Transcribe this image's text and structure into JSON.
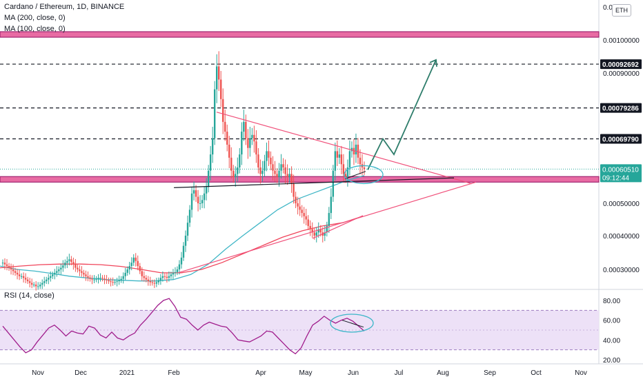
{
  "legend": {
    "title": "Cardano / Ethereum, 1D, BINANCE",
    "ma200": "MA (200, close, 0)",
    "ma100": "MA (100, close, 0)",
    "rsi": "RSI (14, close)"
  },
  "unit_badge": "ETH",
  "colors": {
    "up": "#26a69a",
    "down": "#ef5350",
    "ma200": "#f0445a",
    "ma100": "#3fb6c6",
    "zone_fill": "#e86ba3",
    "zone_border": "#a02470",
    "triangle": "#f0507a",
    "arrow": "#2e7d6b",
    "rsi_line": "#a01c8c",
    "rsi_band": "#ede1f7",
    "ellipse": "#3bb6c8",
    "neckline": "#131722",
    "text_line": "#131722"
  },
  "price_scale": {
    "top_label": "0.0",
    "ticks": [
      "0.00100000",
      "0.00090000",
      "0.00050000",
      "0.00040000",
      "0.00030000"
    ]
  },
  "level_labels": [
    {
      "text": "0.00092692",
      "value": 0.00092692
    },
    {
      "text": "0.00079286",
      "value": 0.00079286
    },
    {
      "text": "0.00069790",
      "value": 0.0006979
    }
  ],
  "current_price": {
    "text": "0.00060510",
    "value": 0.0006051,
    "countdown": "09:12:44"
  },
  "rsi_scale": {
    "ticks": [
      "80.00",
      "60.00",
      "40.00",
      "20.00"
    ]
  },
  "x_axis_labels": [
    "Nov",
    "Dec",
    "2021",
    "Feb",
    "Apr",
    "May",
    "Jun",
    "Jul",
    "Aug",
    "Sep",
    "Oct",
    "Nov"
  ],
  "chart_data": {
    "type": "candlestick",
    "title": "Cardano / Ethereum, 1D, BINANCE",
    "unit": "ETH",
    "price_range": [
      0.00025,
      0.00105
    ],
    "rsi_range": [
      20,
      80
    ],
    "rsi_band": [
      30,
      70
    ],
    "horizontal_levels": [
      0.00092692,
      0.00079286,
      0.0006979
    ],
    "supply_zone": [
      0.00101,
      0.001025
    ],
    "demand_zone": [
      0.000565,
      0.000582
    ],
    "closes": [
      0.00032,
      0.000315,
      0.00031,
      0.000305,
      0.0003,
      0.000295,
      0.00029,
      0.000285,
      0.00028,
      0.00028,
      0.000275,
      0.00027,
      0.000265,
      0.00026,
      0.000255,
      0.000255,
      0.00025,
      0.00025,
      0.000255,
      0.00026,
      0.000265,
      0.00027,
      0.000275,
      0.00028,
      0.000285,
      0.00029,
      0.000295,
      0.0003,
      0.000305,
      0.000312,
      0.00032,
      0.000325,
      0.00033,
      0.000322,
      0.000315,
      0.000305,
      0.0003,
      0.000295,
      0.00029,
      0.000285,
      0.00028,
      0.000276,
      0.000272,
      0.00027,
      0.00027,
      0.000272,
      0.000275,
      0.000275,
      0.000273,
      0.00027,
      0.000268,
      0.000265,
      0.000263,
      0.000262,
      0.000263,
      0.000265,
      0.000268,
      0.000272,
      0.00028,
      0.00029,
      0.0003,
      0.00031,
      0.00032,
      0.000335,
      0.000325,
      0.00031,
      0.000295,
      0.00028,
      0.000275,
      0.00027,
      0.000265,
      0.000262,
      0.00026,
      0.000258,
      0.000262,
      0.000268,
      0.000275,
      0.00028,
      0.000278,
      0.000275,
      0.00028,
      0.000285,
      0.00029,
      0.000292,
      0.0003,
      0.000315,
      0.000335,
      0.00037,
      0.0004,
      0.00044,
      0.00048,
      0.00053,
      0.00054,
      0.00052,
      0.0005,
      0.0005,
      0.00051,
      0.00053,
      0.00055,
      0.0006,
      0.00065,
      0.0007,
      0.00085,
      0.00092,
      0.00088,
      0.00082,
      0.00075,
      0.00072,
      0.00068,
      0.00064,
      0.0006,
      0.00058,
      0.00059,
      0.00061,
      0.00065,
      0.00072,
      0.00075,
      0.0007,
      0.00067,
      0.0007,
      0.00071,
      0.00069,
      0.00065,
      0.00061,
      0.00059,
      0.0006,
      0.00063,
      0.00066,
      0.00064,
      0.00062,
      0.0006,
      0.00059,
      0.00058,
      0.0006,
      0.00062,
      0.00061,
      0.00059,
      0.00058,
      0.00059,
      0.00056,
      0.00052,
      0.0005,
      0.00049,
      0.00048,
      0.00047,
      0.00046,
      0.00045,
      0.00043,
      0.00042,
      0.00041,
      0.0004,
      0.00041,
      0.00042,
      0.00041,
      0.0004,
      0.00041,
      0.00043,
      0.00047,
      0.00052,
      0.0006,
      0.00066,
      0.00064,
      0.00065,
      0.00062,
      0.00059,
      0.00058,
      0.00061,
      0.00066,
      0.00067,
      0.00065,
      0.00068,
      0.00064,
      0.00062,
      0.00061,
      0.0006051
    ],
    "ma100": [
      0.00031,
      0.0003,
      0.000295,
      0.000288,
      0.00028,
      0.000275,
      0.00027,
      0.000268,
      0.000266,
      0.000266,
      0.00027,
      0.000285,
      0.000315,
      0.00036,
      0.0004,
      0.00044,
      0.00048,
      0.00051,
      0.00053,
      0.00055,
      0.00057,
      0.000585
    ],
    "ma200": [
      0.000305,
      0.00031,
      0.000314,
      0.000316,
      0.000316,
      0.000314,
      0.000309,
      0.0003,
      0.00029,
      0.00029,
      0.0003,
      0.00032,
      0.000345,
      0.00037,
      0.000395,
      0.000415,
      0.00043,
      0.00044,
      0.00046
    ],
    "rsi": [
      54,
      47,
      40,
      33,
      27,
      30,
      38,
      45,
      52,
      55,
      50,
      44,
      49,
      47,
      46,
      54,
      52,
      45,
      42,
      48,
      42,
      40,
      44,
      47,
      55,
      61,
      68,
      75,
      80,
      82,
      74,
      63,
      61,
      55,
      50,
      55,
      58,
      56,
      54,
      53,
      47,
      40,
      39,
      38,
      41,
      44,
      49,
      48,
      42,
      36,
      30,
      26,
      32,
      44,
      55,
      59,
      64,
      60,
      57,
      60,
      62,
      59,
      54,
      49
    ]
  }
}
